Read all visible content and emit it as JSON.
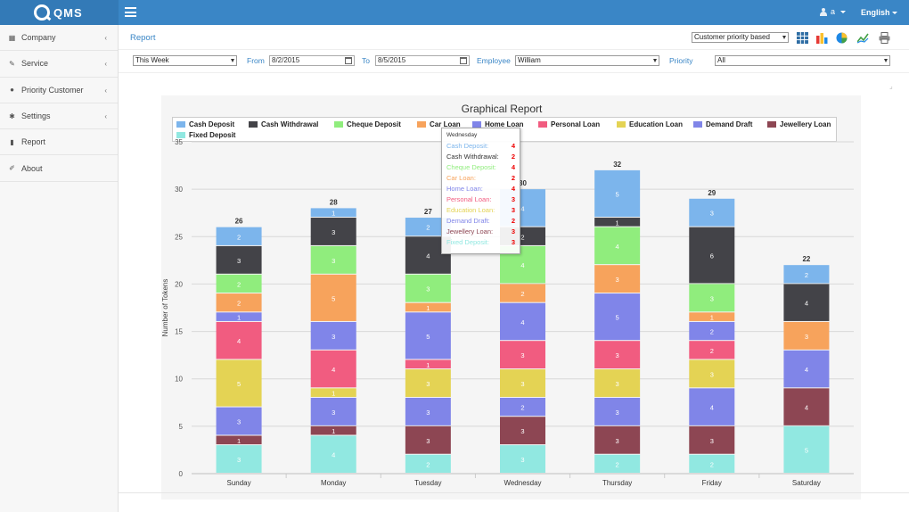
{
  "app": {
    "logo_text": "QMS"
  },
  "topbar": {
    "user": "a",
    "language": "English"
  },
  "sidebar": {
    "items": [
      {
        "label": "Company",
        "icon": "building-icon",
        "has_children": true
      },
      {
        "label": "Service",
        "icon": "wrench-icon",
        "has_children": true
      },
      {
        "label": "Priority Customer",
        "icon": "users-icon",
        "has_children": true
      },
      {
        "label": "Settings",
        "icon": "gear-icon",
        "has_children": true
      },
      {
        "label": "Report",
        "icon": "file-icon",
        "has_children": false
      },
      {
        "label": "About",
        "icon": "edit-icon",
        "has_children": false
      }
    ]
  },
  "breadcrumb": {
    "label": "Report"
  },
  "report_type": {
    "selected": "Customer priority based"
  },
  "filters": {
    "period": "This Week",
    "from_label": "From",
    "from_value": "8/2/2015",
    "to_label": "To",
    "to_value": "8/5/2015",
    "employee_label": "Employee",
    "employee_value": "William",
    "priority_label": "Priority",
    "priority_value": "All"
  },
  "chart_data": {
    "type": "bar",
    "stacked": true,
    "title": "Graphical Report",
    "ylabel": "Number of Tokens",
    "xlabel": "",
    "ylim": [
      0,
      35
    ],
    "yticks": [
      0,
      5,
      10,
      15,
      20,
      25,
      30,
      35
    ],
    "grid": true,
    "legend": "top",
    "categories": [
      "Sunday",
      "Monday",
      "Tuesday",
      "Wednesday",
      "Thursday",
      "Friday",
      "Saturday"
    ],
    "totals": [
      26,
      28,
      27,
      30,
      32,
      29,
      22
    ],
    "series": [
      {
        "name": "Cash Deposit",
        "color": "#7cb5ec",
        "values": [
          2,
          1,
          2,
          4,
          5,
          3,
          2
        ]
      },
      {
        "name": "Cash Withdrawal",
        "color": "#434348",
        "values": [
          3,
          3,
          4,
          2,
          1,
          6,
          4
        ]
      },
      {
        "name": "Cheque Deposit",
        "color": "#90ed7d",
        "values": [
          2,
          3,
          3,
          4,
          4,
          3,
          0
        ]
      },
      {
        "name": "Car Loan",
        "color": "#f7a35c",
        "values": [
          2,
          5,
          1,
          2,
          3,
          1,
          3
        ]
      },
      {
        "name": "Home Loan",
        "color": "#8085e9",
        "values": [
          1,
          3,
          5,
          4,
          5,
          2,
          0
        ]
      },
      {
        "name": "Personal Loan",
        "color": "#f15c80",
        "values": [
          4,
          4,
          1,
          3,
          3,
          2,
          0
        ]
      },
      {
        "name": "Education Loan",
        "color": "#e4d354",
        "values": [
          5,
          1,
          3,
          3,
          3,
          3,
          0
        ]
      },
      {
        "name": "Demand Draft",
        "color": "#8085e8",
        "values": [
          3,
          3,
          3,
          2,
          3,
          4,
          4
        ]
      },
      {
        "name": "Jewellery Loan",
        "color": "#8d4653",
        "values": [
          1,
          1,
          3,
          3,
          3,
          3,
          4
        ]
      },
      {
        "name": "Fixed Deposit",
        "color": "#91e8e1",
        "values": [
          3,
          4,
          2,
          3,
          2,
          2,
          5
        ]
      }
    ]
  },
  "tooltip": {
    "title": "Wednesday",
    "rows": [
      {
        "label": "Cash Deposit:",
        "value": "4"
      },
      {
        "label": "Cash Withdrawal:",
        "value": "2"
      },
      {
        "label": "Cheque Deposit:",
        "value": "4"
      },
      {
        "label": "Car Loan:",
        "value": "2"
      },
      {
        "label": "Home Loan:",
        "value": "4"
      },
      {
        "label": "Personal Loan:",
        "value": "3"
      },
      {
        "label": "Education Loan:",
        "value": "3"
      },
      {
        "label": "Demand Draft:",
        "value": "2"
      },
      {
        "label": "Jewellery Loan:",
        "value": "3"
      },
      {
        "label": "Fixed Deposit:",
        "value": "3"
      }
    ]
  }
}
